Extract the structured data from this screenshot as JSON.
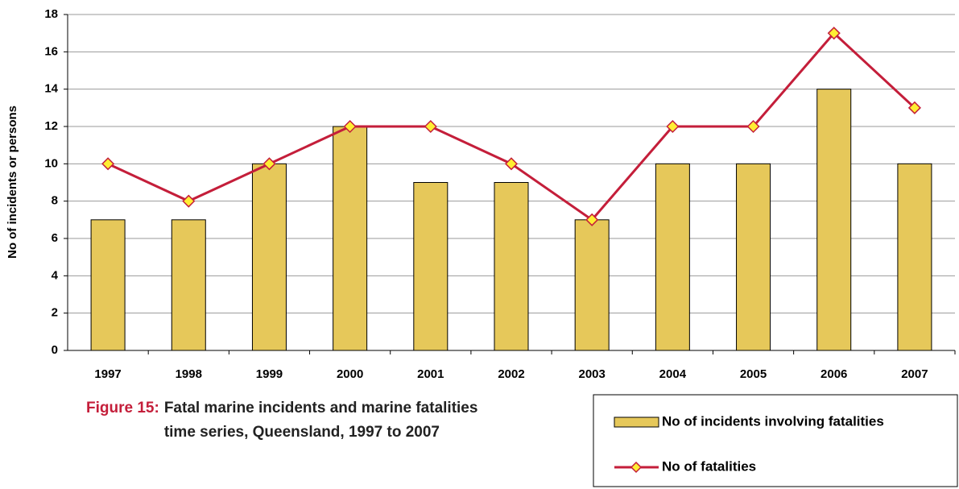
{
  "chart_data": {
    "type": "bar-line",
    "caption": {
      "label": "Figure 15:",
      "text": "Fatal marine incidents and marine fatalities time series, Queensland, 1997 to 2007"
    },
    "y_label": "No of incidents or persons",
    "categories": [
      "1997",
      "1998",
      "1999",
      "2000",
      "2001",
      "2002",
      "2003",
      "2004",
      "2005",
      "2006",
      "2007"
    ],
    "series": [
      {
        "name": "No of incidents involving fatalities",
        "type": "bar",
        "color": "#e6c85a",
        "values": [
          7,
          7,
          10,
          12,
          9,
          9,
          7,
          10,
          10,
          14,
          10
        ]
      },
      {
        "name": "No of fatalities",
        "type": "line",
        "color": "#c41e3a",
        "marker_color": "#ffee33",
        "values": [
          10,
          8,
          10,
          12,
          12,
          10,
          7,
          12,
          12,
          17,
          13
        ]
      }
    ],
    "ylim": [
      0,
      18
    ],
    "yticks": [
      0,
      2,
      4,
      6,
      8,
      10,
      12,
      14,
      16,
      18
    ],
    "grid": true
  }
}
